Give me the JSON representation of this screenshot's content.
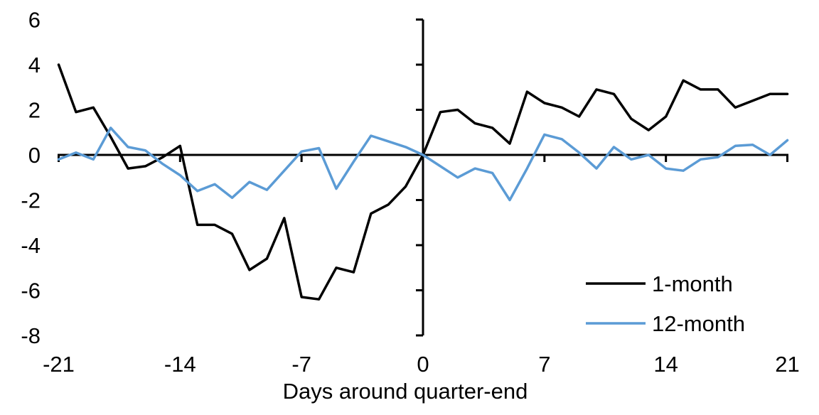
{
  "chart_data": {
    "type": "line",
    "title": "",
    "xlabel": "Days around quarter-end",
    "ylabel": "",
    "xlim": [
      -21,
      21
    ],
    "ylim": [
      -8,
      6
    ],
    "grid": false,
    "legend_position": "lower right",
    "x_ticks": [
      -21,
      -14,
      -7,
      0,
      7,
      14,
      21
    ],
    "y_ticks": [
      6,
      4,
      2,
      0,
      -2,
      -4,
      -6,
      -8
    ],
    "x": [
      -21,
      -20,
      -19,
      -18,
      -17,
      -16,
      -15,
      -14,
      -13,
      -12,
      -11,
      -10,
      -9,
      -8,
      -7,
      -6,
      -5,
      -4,
      -3,
      -2,
      -1,
      0,
      1,
      2,
      3,
      4,
      5,
      6,
      7,
      8,
      9,
      10,
      11,
      12,
      13,
      14,
      15,
      16,
      17,
      18,
      19,
      20,
      21
    ],
    "series": [
      {
        "name": "1-month",
        "color": "#000000",
        "values": [
          4.0,
          1.9,
          2.1,
          0.8,
          -0.6,
          -0.5,
          -0.1,
          0.4,
          -3.1,
          -3.1,
          -3.5,
          -5.1,
          -4.6,
          -2.8,
          -6.3,
          -6.4,
          -5.0,
          -5.2,
          -2.6,
          -2.2,
          -1.4,
          0.0,
          1.9,
          2.0,
          1.4,
          1.2,
          0.5,
          2.8,
          2.3,
          2.1,
          1.7,
          2.9,
          2.7,
          1.6,
          1.1,
          1.7,
          3.3,
          2.9,
          2.9,
          2.1,
          2.4,
          2.7,
          2.7
        ]
      },
      {
        "name": "12-month",
        "color": "#5B9BD5",
        "values": [
          -0.2,
          0.1,
          -0.2,
          1.2,
          0.35,
          0.2,
          -0.4,
          -0.9,
          -1.6,
          -1.3,
          -1.9,
          -1.2,
          -1.55,
          -0.7,
          0.15,
          0.3,
          -1.5,
          -0.3,
          0.85,
          0.6,
          0.35,
          0.0,
          -0.5,
          -1.0,
          -0.6,
          -0.8,
          -2.0,
          -0.6,
          0.9,
          0.7,
          0.1,
          -0.6,
          0.35,
          -0.2,
          0.0,
          -0.6,
          -0.7,
          -0.2,
          -0.1,
          0.4,
          0.45,
          0.0,
          0.65
        ]
      }
    ]
  }
}
